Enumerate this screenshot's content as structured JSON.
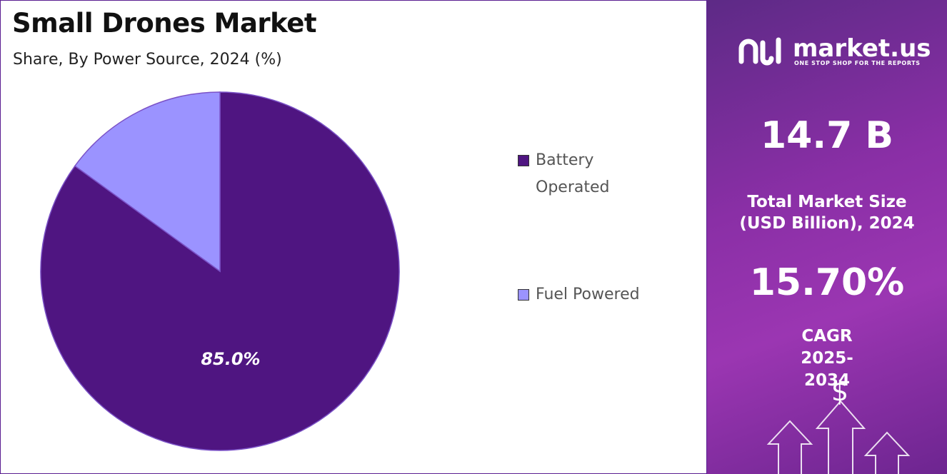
{
  "chart_data": {
    "type": "pie",
    "title": "Small Drones Market",
    "subtitle": "Share, By Power Source, 2024 (%)",
    "categories": [
      "Battery Operated",
      "Fuel Powered"
    ],
    "values": [
      85.0,
      15.0
    ],
    "value_labels": [
      "85.0%",
      null
    ],
    "colors": [
      "#4f1581",
      "#9b93ff"
    ],
    "legend_position": "right"
  },
  "side_panel": {
    "brand": "market.us",
    "tagline": "ONE STOP SHOP FOR THE REPORTS",
    "market_size_value": "14.7 B",
    "market_size_label": "Total Market Size (USD Billion), 2024",
    "cagr_value": "15.70%",
    "cagr_label": "CAGR 2025-2034",
    "icon_symbol": "$"
  }
}
